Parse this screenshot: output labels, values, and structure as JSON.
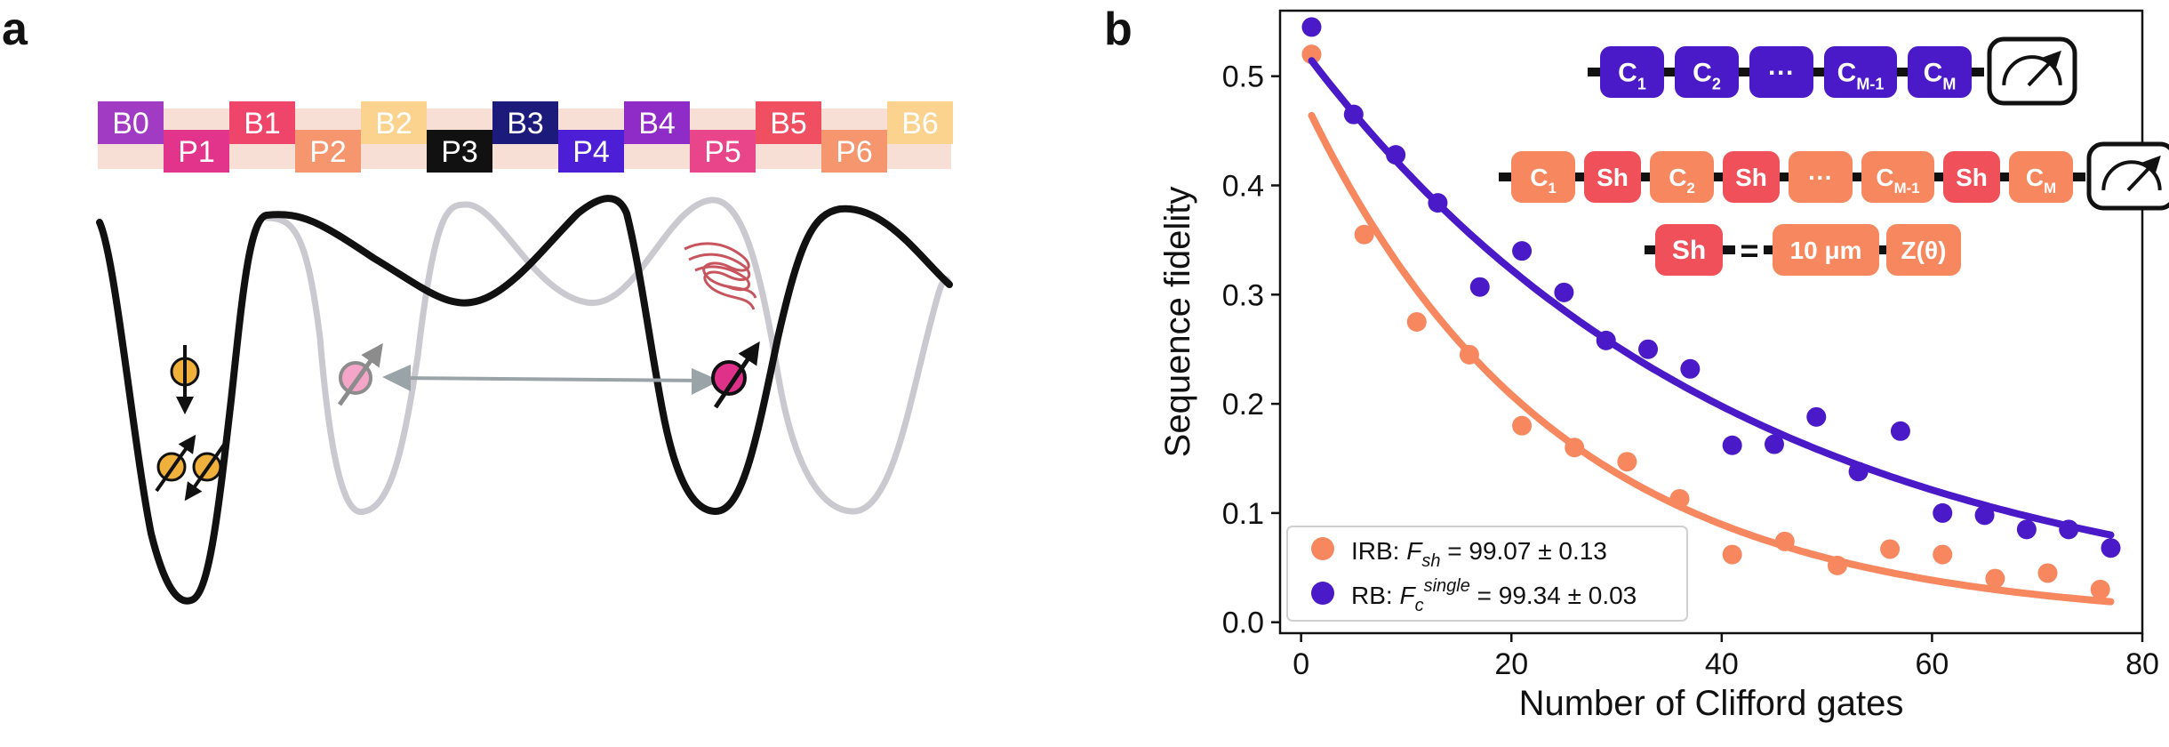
{
  "panel_labels": {
    "a": "a",
    "b": "b"
  },
  "gate_strip": {
    "top": [
      {
        "label": "B0",
        "color": "#a23bc4",
        "text_color": "#ffffff"
      },
      {
        "label": "B1",
        "color": "#f0456a",
        "text_color": "#ffffff"
      },
      {
        "label": "B2",
        "color": "#fbd38f",
        "text_color": "#ffffff"
      },
      {
        "label": "B3",
        "color": "#1c1a7a",
        "text_color": "#ffffff"
      },
      {
        "label": "B4",
        "color": "#8f2cc8",
        "text_color": "#ffffff"
      },
      {
        "label": "B5",
        "color": "#f04f62",
        "text_color": "#ffffff"
      },
      {
        "label": "B6",
        "color": "#fbd38f",
        "text_color": "#ffffff"
      }
    ],
    "bottom": [
      {
        "label": "P1",
        "color": "#e2348a",
        "text_color": "#ffffff"
      },
      {
        "label": "P2",
        "color": "#f6966e",
        "text_color": "#ffffff"
      },
      {
        "label": "P3",
        "color": "#111111",
        "text_color": "#ffffff"
      },
      {
        "label": "P4",
        "color": "#4c1ed6",
        "text_color": "#ffffff"
      },
      {
        "label": "P5",
        "color": "#e8458a",
        "text_color": "#ffffff"
      },
      {
        "label": "P6",
        "color": "#f6966e",
        "text_color": "#ffffff"
      }
    ],
    "band_color": "#f8dfd6"
  },
  "colors": {
    "orange": "#f7875f",
    "purple": "#4a19c8",
    "black": "#111111",
    "gray": "#c9c9cf",
    "spin_orange": "#f0b03c",
    "spin_pink": "#f5a6c8",
    "spin_magenta": "#e0318a",
    "arrow_gray": "#9aa3a8",
    "wave_red": "#c8545e"
  },
  "circuits": {
    "rb": [
      "C1",
      "C2",
      "···",
      "CM-1",
      "CM"
    ],
    "irb": [
      "C1",
      "Sh",
      "C2",
      "Sh",
      "···",
      "CM-1",
      "Sh",
      "CM"
    ],
    "sh_definition": {
      "lhs": "Sh",
      "eq": "=",
      "rhs": [
        "10 μm",
        "Z(θ)"
      ]
    },
    "sh_color": "#f0505a"
  },
  "chart_data": {
    "type": "scatter",
    "xlabel": "Number of Clifford gates",
    "ylabel": "Sequence fidelity",
    "xlim": [
      -2,
      80
    ],
    "ylim": [
      -0.01,
      0.56
    ],
    "xticks": [
      0,
      20,
      40,
      60,
      80
    ],
    "yticks": [
      0.0,
      0.1,
      0.2,
      0.3,
      0.4,
      0.5
    ],
    "xtick_labels": [
      "0",
      "20",
      "40",
      "60",
      "80"
    ],
    "ytick_labels": [
      "0.0",
      "0.1",
      "0.2",
      "0.3",
      "0.4",
      "0.5"
    ],
    "grid": false,
    "legend": "bottom-left",
    "series": [
      {
        "name": "IRB",
        "legend_prefix": "IRB: ",
        "legend_var": "F",
        "legend_sub": "sh",
        "legend_value": " = 99.07 ± 0.13",
        "color": "#f7875f",
        "x": [
          1,
          6,
          11,
          16,
          21,
          26,
          31,
          36,
          41,
          46,
          51,
          56,
          61,
          66,
          71,
          76
        ],
        "y": [
          0.52,
          0.355,
          0.275,
          0.245,
          0.18,
          0.16,
          0.147,
          0.113,
          0.062,
          0.074,
          0.052,
          0.067,
          0.062,
          0.04,
          0.045,
          0.03
        ],
        "fit": {
          "A": 0.484,
          "p": 0.9587,
          "B": 0.0
        }
      },
      {
        "name": "RB",
        "legend_prefix": "RB: ",
        "legend_var": "F",
        "legend_sub": "c",
        "legend_sup": "single",
        "legend_value": " = 99.34 ± 0.03",
        "color": "#4a19c8",
        "x": [
          1,
          5,
          9,
          13,
          17,
          21,
          25,
          29,
          33,
          37,
          41,
          45,
          49,
          53,
          57,
          61,
          65,
          69,
          73,
          77
        ],
        "y": [
          0.545,
          0.465,
          0.428,
          0.384,
          0.307,
          0.34,
          0.302,
          0.258,
          0.25,
          0.232,
          0.162,
          0.163,
          0.188,
          0.138,
          0.175,
          0.1,
          0.098,
          0.085,
          0.085,
          0.068
        ],
        "fit": {
          "A": 0.527,
          "p": 0.9758,
          "B": 0.0
        }
      }
    ]
  }
}
